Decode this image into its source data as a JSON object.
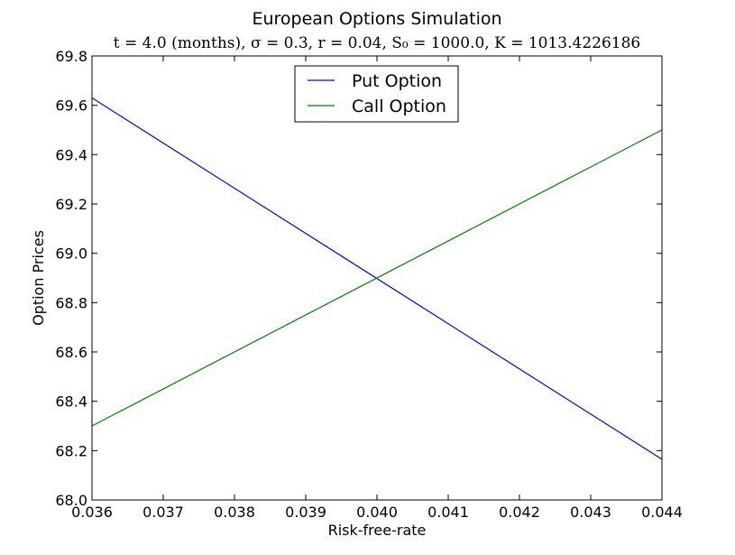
{
  "chart_data": {
    "type": "line",
    "title": "European Options Simulation",
    "subtitle": "t = 4.0 (months), σ = 0.3, r = 0.04, S₀ = 1000.0, K = 1013.4226186",
    "xlabel": "Risk-free-rate",
    "ylabel": "Option Prices",
    "xlim": [
      0.036,
      0.044
    ],
    "ylim": [
      68.0,
      69.8
    ],
    "x_ticks": [
      "0.036",
      "0.037",
      "0.038",
      "0.039",
      "0.040",
      "0.041",
      "0.042",
      "0.043",
      "0.044"
    ],
    "y_ticks": [
      "68.0",
      "68.2",
      "68.4",
      "68.6",
      "68.8",
      "69.0",
      "69.2",
      "69.4",
      "69.6",
      "69.8"
    ],
    "grid": false,
    "legend_position": "top-center",
    "series": [
      {
        "name": "Put Option",
        "color": "#0000ff",
        "x": [
          0.036,
          0.044
        ],
        "y": [
          69.63,
          68.165
        ]
      },
      {
        "name": "Call Option",
        "color": "#008000",
        "x": [
          0.036,
          0.044
        ],
        "y": [
          68.3,
          69.5
        ]
      }
    ]
  }
}
